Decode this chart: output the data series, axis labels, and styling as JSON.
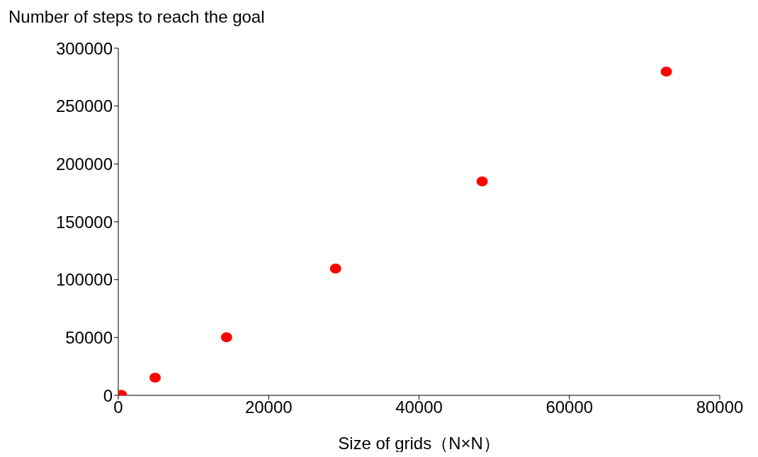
{
  "chart_data": {
    "type": "scatter",
    "ylabel": "Number of steps to reach the goal",
    "xlabel": "Size of grids（N×N）",
    "x": [
      400,
      4900,
      14400,
      28900,
      48400,
      72900
    ],
    "series": [
      {
        "color": "#ff0000",
        "values": [
          500,
          15300,
          50200,
          109600,
          184900,
          279800
        ]
      }
    ],
    "xlim": [
      0,
      80000
    ],
    "xticks": [
      0,
      20000,
      40000,
      60000,
      80000
    ],
    "ylim": [
      0,
      300000
    ],
    "yticks": [
      0,
      50000,
      100000,
      150000,
      200000,
      250000,
      300000
    ],
    "marker": "circle",
    "grid": false,
    "legend": false
  }
}
